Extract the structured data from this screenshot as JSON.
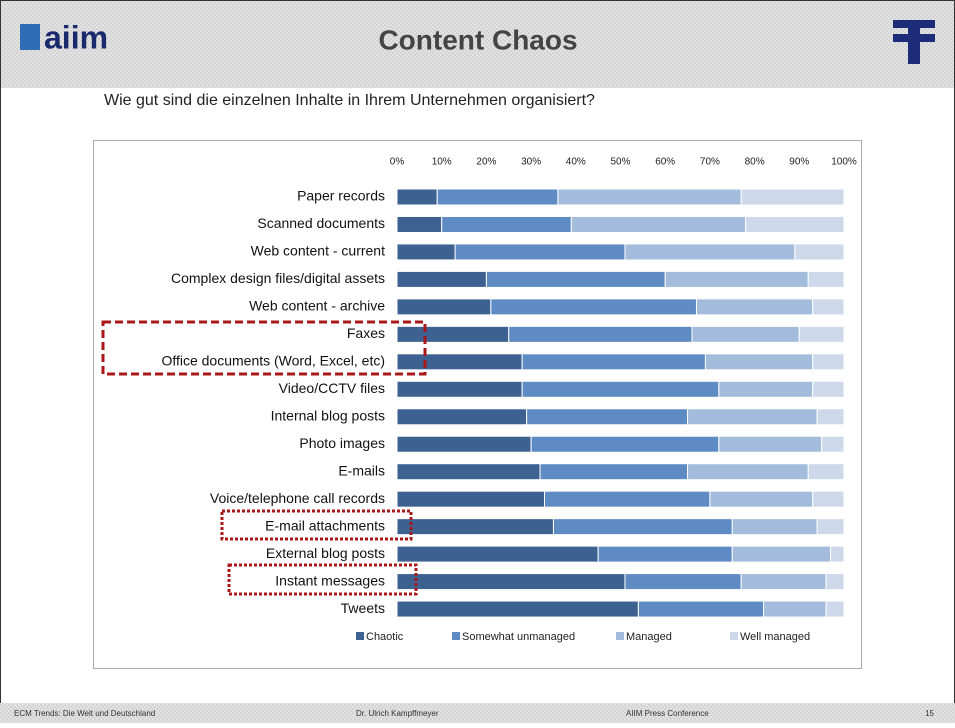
{
  "header": {
    "logo": "aiim",
    "title": "Content Chaos"
  },
  "footer": [
    "ECM Trends: Die Welt und Deutschland",
    "Dr. Ulrich Kampffmeyer",
    "AIIM Press Conference",
    "15"
  ],
  "chart_data": {
    "type": "stacked-barh",
    "title": "Wie gut sind die einzelnen Inhalte in Ihrem Unternehmen organisiert?",
    "categories": [
      "Paper records",
      "Scanned documents",
      "Web content - current",
      "Complex design files/digital assets",
      "Web content - archive",
      "Faxes",
      "Office documents (Word, Excel, etc)",
      "Video/CCTV files",
      "Internal blog posts",
      "Photo images",
      "E-mails",
      "Voice/telephone call records",
      "E-mail attachments",
      "External blog posts",
      "Instant messages",
      "Tweets"
    ],
    "series": [
      {
        "name": "Chaotic",
        "color": "#3d6291",
        "values": [
          9,
          10,
          13,
          20,
          21,
          25,
          28,
          28,
          29,
          30,
          32,
          33,
          35,
          45,
          51,
          54
        ]
      },
      {
        "name": "Somewhat unmanaged",
        "color": "#5f8bc4",
        "values": [
          27,
          29,
          38,
          40,
          46,
          41,
          41,
          44,
          36,
          42,
          33,
          37,
          40,
          30,
          26,
          28
        ]
      },
      {
        "name": "Managed",
        "color": "#a3bcdc",
        "values": [
          41,
          39,
          38,
          32,
          26,
          24,
          24,
          21,
          29,
          23,
          27,
          23,
          19,
          22,
          19,
          14
        ]
      },
      {
        "name": "Well managed",
        "color": "#cdd9ea",
        "values": [
          23,
          22,
          11,
          8,
          7,
          10,
          7,
          7,
          6,
          5,
          8,
          7,
          6,
          3,
          4,
          4
        ]
      }
    ],
    "xlim": [
      0,
      100
    ],
    "xticks": [
      {
        "value": 0,
        "label": "0%"
      },
      {
        "value": 10,
        "label": "10%"
      },
      {
        "value": 20,
        "label": "20%"
      },
      {
        "value": 30,
        "label": "30%"
      },
      {
        "value": 40,
        "label": "40%"
      },
      {
        "value": 50,
        "label": "50%"
      },
      {
        "value": 60,
        "label": "60%"
      },
      {
        "value": 70,
        "label": "70%"
      },
      {
        "value": 80,
        "label": "80%"
      },
      {
        "value": 90,
        "label": "90%"
      },
      {
        "value": 100,
        "label": "100%"
      }
    ]
  }
}
